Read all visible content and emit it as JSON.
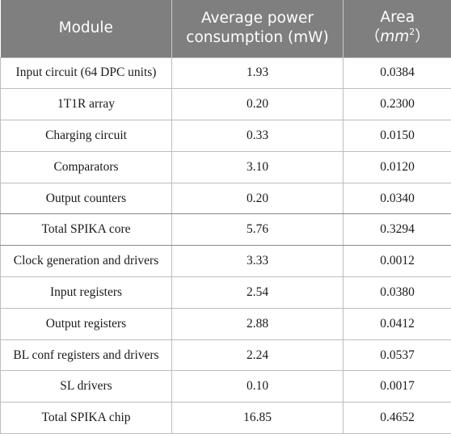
{
  "table": {
    "headers": {
      "module": "Module",
      "power": "Average power consumption (mW)",
      "area_label": "Area",
      "area_unit_base": "mm",
      "area_unit_exp": "2"
    },
    "rows": [
      {
        "module": "Input circuit (64 DPC units)",
        "power": "1.93",
        "area": "0.0384"
      },
      {
        "module": "1T1R array",
        "power": "0.20",
        "area": "0.2300"
      },
      {
        "module": "Charging circuit",
        "power": "0.33",
        "area": "0.0150"
      },
      {
        "module": "Comparators",
        "power": "3.10",
        "area": "0.0120"
      },
      {
        "module": "Output counters",
        "power": "0.20",
        "area": "0.0340"
      },
      {
        "module": "Total SPIKA core",
        "power": "5.76",
        "area": "0.3294"
      },
      {
        "module": "Clock generation and drivers",
        "power": "3.33",
        "area": "0.0012"
      },
      {
        "module": "Input registers",
        "power": "2.54",
        "area": "0.0380"
      },
      {
        "module": "Output registers",
        "power": "2.88",
        "area": "0.0412"
      },
      {
        "module": "BL conf registers and drivers",
        "power": "2.24",
        "area": "0.0537"
      },
      {
        "module": "SL drivers",
        "power": "0.10",
        "area": "0.0017"
      },
      {
        "module": "Total SPIKA chip",
        "power": "16.85",
        "area": "0.4652"
      }
    ]
  },
  "colors": {
    "header_bg": "#7f7f7f",
    "header_text": "#ffffff",
    "grid_line": "#bdbdbd"
  }
}
